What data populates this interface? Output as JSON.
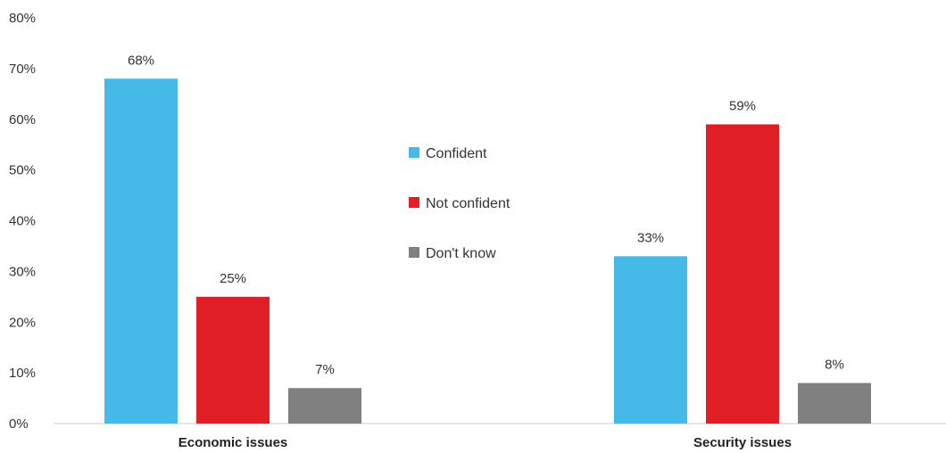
{
  "chart_data": {
    "type": "bar",
    "title": "",
    "xlabel": "",
    "ylabel": "",
    "categories": [
      "Economic issues",
      "Security issues"
    ],
    "series": [
      {
        "name": "Confident",
        "values": [
          68,
          33
        ],
        "color": "#45b9e8"
      },
      {
        "name": "Not confident",
        "values": [
          25,
          59
        ],
        "color": "#e01e26"
      },
      {
        "name": "Don't know",
        "values": [
          7,
          8
        ],
        "color": "#808080"
      }
    ],
    "value_suffix": "%",
    "ylim": [
      0,
      80
    ],
    "yticks": [
      "0%",
      "10%",
      "20%",
      "30%",
      "40%",
      "50%",
      "60%",
      "70%",
      "80%"
    ],
    "grid": false,
    "legend_position": "center"
  }
}
